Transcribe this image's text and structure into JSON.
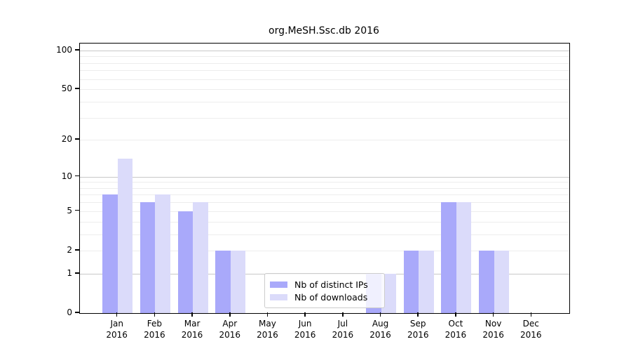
{
  "chart_data": {
    "type": "bar",
    "title": "org.MeSH.Ssc.db 2016",
    "y_scale": "log1p",
    "ylim": [
      0,
      113
    ],
    "y_ticks": [
      100,
      50,
      20,
      10,
      5,
      2,
      1,
      0
    ],
    "grid_major": [
      1,
      10,
      100
    ],
    "grid_minor": [
      2,
      3,
      4,
      5,
      6,
      7,
      8,
      9,
      20,
      30,
      40,
      50,
      60,
      70,
      80,
      90
    ],
    "categories": [
      "Jan",
      "Feb",
      "Mar",
      "Apr",
      "May",
      "Jun",
      "Jul",
      "Aug",
      "Sep",
      "Oct",
      "Nov",
      "Dec"
    ],
    "year_label": "2016",
    "series": [
      {
        "name": "Nb of distinct IPs",
        "color": "#a9a9fa",
        "values": [
          7,
          6,
          5,
          2,
          0,
          0,
          0,
          1,
          2,
          6,
          2,
          0
        ]
      },
      {
        "name": "Nb of downloads",
        "color": "#dbdbfa",
        "values": [
          14,
          7,
          6,
          2,
          0,
          0,
          0,
          1,
          2,
          6,
          2,
          0
        ]
      }
    ],
    "legend_position": "bottom-center",
    "colors": {
      "axis": "#000000",
      "grid_major": "#c8c8c8",
      "grid_minor": "#ededed",
      "background": "#ffffff"
    }
  }
}
